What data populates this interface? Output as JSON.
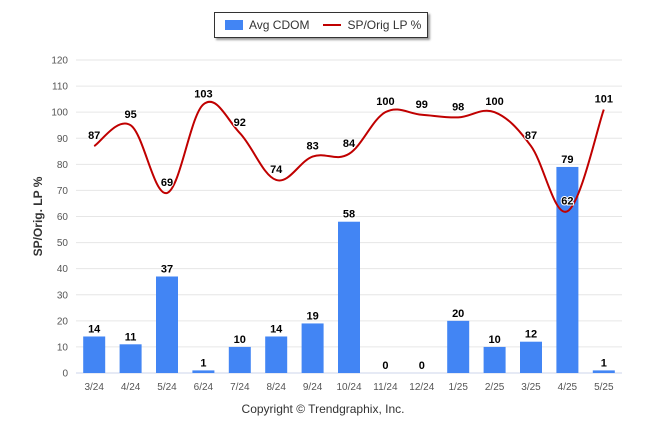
{
  "legend": {
    "bar_label": "Avg CDOM",
    "line_label": "SP/Orig LP %"
  },
  "footer": "Copyright © Trendgraphix, Inc.",
  "colors": {
    "bar": "#4285f4",
    "line": "#c00000",
    "grid": "#e6e6e6"
  },
  "chart_data": {
    "type": "bar",
    "title": "",
    "xlabel": "",
    "ylabel": "SP/Orig. LP %",
    "ylim": [
      0,
      120
    ],
    "yticks": [
      0,
      10,
      20,
      30,
      40,
      50,
      60,
      70,
      80,
      90,
      100,
      110,
      120
    ],
    "grid": true,
    "legend_position": "top-center",
    "categories": [
      "3/24",
      "4/24",
      "5/24",
      "6/24",
      "7/24",
      "8/24",
      "9/24",
      "10/24",
      "11/24",
      "12/24",
      "1/25",
      "2/25",
      "3/25",
      "4/25",
      "5/25"
    ],
    "series": [
      {
        "name": "Avg CDOM",
        "type": "bar",
        "values": [
          14,
          11,
          37,
          1,
          10,
          14,
          19,
          58,
          0,
          0,
          20,
          10,
          12,
          79,
          1
        ]
      },
      {
        "name": "SP/Orig LP %",
        "type": "line",
        "values": [
          87,
          95,
          69,
          103,
          92,
          74,
          83,
          84,
          100,
          99,
          98,
          100,
          87,
          62,
          101
        ]
      }
    ]
  }
}
